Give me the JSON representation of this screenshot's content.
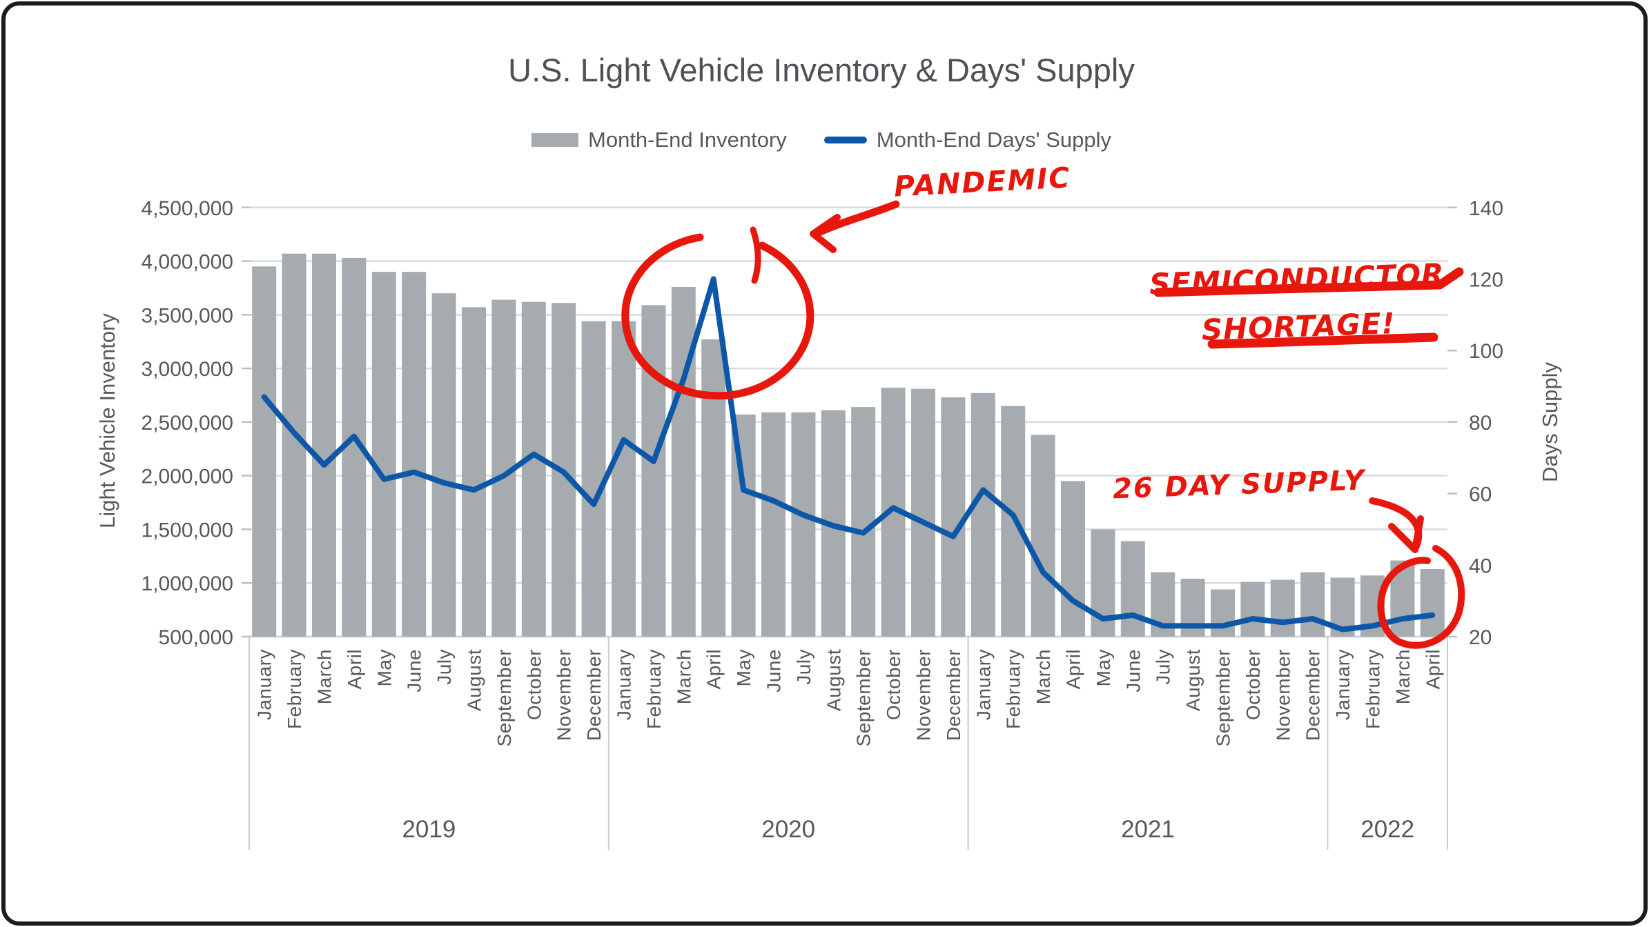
{
  "title": "U.S. Light Vehicle Inventory & Days' Supply",
  "legend": {
    "inventory_label": "Month-End Inventory",
    "days_supply_label": "Month-End Days' Supply"
  },
  "colors": {
    "bar": "#a5abaf",
    "line": "#0d57a8",
    "annotation_red": "#e8170e",
    "axis_text": "#55585c",
    "gridline": "#d8dbdd",
    "axis_line": "#c9cdd0",
    "title_text": "#4d5156"
  },
  "annotations": {
    "pandemic": "PANDEMIC",
    "semiconductor_line1": "SEMICONDUCTOR",
    "semiconductor_line2": "SHORTAGE!",
    "day_supply": "26 DAY SUPPLY"
  },
  "chart_data": {
    "type": "bar",
    "combo": "bar+line",
    "title": "U.S. Light Vehicle Inventory & Days' Supply",
    "categories_months": [
      "January",
      "February",
      "March",
      "April",
      "May",
      "June",
      "July",
      "August",
      "September",
      "October",
      "November",
      "December",
      "January",
      "February",
      "March",
      "April",
      "May",
      "June",
      "July",
      "August",
      "September",
      "October",
      "November",
      "December",
      "January",
      "February",
      "March",
      "April",
      "May",
      "June",
      "July",
      "August",
      "September",
      "October",
      "November",
      "December",
      "January",
      "February",
      "March",
      "April"
    ],
    "year_groups": [
      {
        "label": "2019",
        "months": 12
      },
      {
        "label": "2020",
        "months": 12
      },
      {
        "label": "2021",
        "months": 12
      },
      {
        "label": "2022",
        "months": 4
      }
    ],
    "series": [
      {
        "name": "Month-End Inventory",
        "type": "bar",
        "axis": "left",
        "values": [
          3950000,
          4070000,
          4070000,
          4030000,
          3900000,
          3900000,
          3700000,
          3570000,
          3640000,
          3620000,
          3610000,
          3440000,
          3440000,
          3590000,
          3760000,
          3270000,
          2570000,
          2590000,
          2590000,
          2610000,
          2640000,
          2820000,
          2810000,
          2730000,
          2770000,
          2650000,
          2380000,
          1950000,
          1500000,
          1390000,
          1100000,
          1040000,
          940000,
          1010000,
          1030000,
          1100000,
          1050000,
          1070000,
          1210000,
          1130000
        ]
      },
      {
        "name": "Month-End Days' Supply",
        "type": "line",
        "axis": "right",
        "values": [
          87,
          77,
          68,
          76,
          64,
          66,
          63,
          61,
          65,
          71,
          66,
          57,
          75,
          69,
          92,
          120,
          61,
          58,
          54,
          51,
          49,
          56,
          52,
          48,
          61,
          54,
          38,
          30,
          25,
          26,
          23,
          23,
          23,
          25,
          24,
          25,
          22,
          23,
          25,
          26
        ]
      }
    ],
    "left_axis": {
      "label": "Light Vehicle Inventory",
      "min": 500000,
      "max": 4500000,
      "step": 500000,
      "tick_labels": [
        "4,500,000",
        "4,000,000",
        "3,500,000",
        "3,000,000",
        "2,500,000",
        "2,000,000",
        "1,500,000",
        "1,000,000",
        "500,000"
      ]
    },
    "right_axis": {
      "label": "Days Supply",
      "min": 20,
      "max": 140,
      "step": 20,
      "tick_labels": [
        "140",
        "120",
        "100",
        "80",
        "60",
        "40",
        "20"
      ]
    },
    "grid": true,
    "legend_position": "top"
  }
}
